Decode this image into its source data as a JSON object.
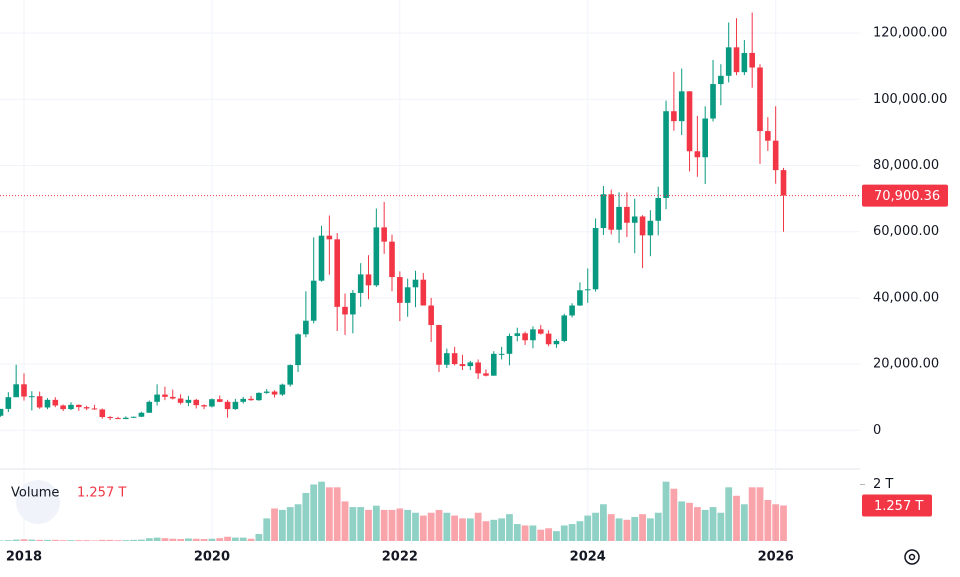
{
  "chart_data": {
    "type": "candlestick",
    "categories": [
      null,
      null,
      null,
      "2018",
      null,
      null,
      null,
      null,
      null,
      null,
      null,
      null,
      null,
      null,
      null,
      null,
      null,
      null,
      null,
      null,
      null,
      null,
      null,
      null,
      null,
      null,
      null,
      "2020",
      null,
      null,
      null,
      null,
      null,
      null,
      null,
      null,
      null,
      null,
      null,
      null,
      null,
      null,
      null,
      null,
      null,
      null,
      null,
      null,
      null,
      null,
      null,
      "2022",
      null,
      null,
      null,
      null,
      null,
      null,
      null,
      null,
      null,
      null,
      null,
      null,
      null,
      null,
      null,
      null,
      null,
      null,
      null,
      null,
      null,
      null,
      null,
      "2024",
      null,
      null,
      null,
      null,
      null,
      null,
      null,
      null,
      null,
      null,
      null,
      null,
      null,
      null,
      null,
      null,
      null,
      null,
      null,
      null,
      null,
      null,
      null,
      "2026",
      null
    ],
    "open": [
      4400,
      6470,
      10000,
      13900,
      10200,
      10300,
      6900,
      9200,
      7500,
      6400,
      7700,
      7000,
      6600,
      6300,
      4000,
      3700,
      3400,
      3800,
      4100,
      5300,
      8600,
      10800,
      10100,
      9600,
      8300,
      9200,
      7600,
      7200,
      9400,
      8600,
      6400,
      8600,
      9500,
      9100,
      11300,
      11700,
      10800,
      13800,
      19700,
      29000,
      33100,
      45200,
      58800,
      57700,
      37300,
      35000,
      41500,
      47100,
      43800,
      61300,
      57000,
      46300,
      38500,
      43200,
      45500,
      37700,
      31800,
      19800,
      23300,
      20000,
      19400,
      20500,
      17200,
      16500,
      23100,
      23100,
      28500,
      29300,
      27200,
      30500,
      29200,
      26000,
      27000,
      34700,
      37700,
      42300,
      42600,
      61100,
      71300,
      60600,
      67500,
      62700,
      64600,
      58900,
      63300,
      70200,
      96400,
      93400,
      102400,
      84300,
      82500,
      94200,
      104600,
      107100,
      115700,
      108200,
      114000,
      109600,
      90400,
      87500,
      78600
    ],
    "high": [
      6470,
      11500,
      19800,
      17200,
      11800,
      11700,
      9700,
      10000,
      7800,
      8500,
      7800,
      7400,
      7700,
      6600,
      4300,
      4100,
      4200,
      4100,
      5600,
      9000,
      13900,
      13200,
      12300,
      10900,
      10400,
      9500,
      7800,
      9600,
      10500,
      9200,
      9500,
      10100,
      10400,
      11500,
      12500,
      12100,
      14100,
      19900,
      29300,
      42000,
      58300,
      61800,
      64900,
      59600,
      41300,
      42400,
      50500,
      52900,
      67000,
      69000,
      59100,
      48000,
      45800,
      48200,
      47500,
      40000,
      31900,
      24700,
      25200,
      22800,
      21000,
      21400,
      18400,
      23900,
      25200,
      29200,
      31000,
      29800,
      31400,
      31800,
      30200,
      27500,
      35200,
      38400,
      44700,
      48900,
      64000,
      73800,
      72700,
      71900,
      71900,
      70000,
      65000,
      66500,
      73600,
      99600,
      108300,
      109300,
      102500,
      95000,
      97900,
      111900,
      110600,
      123200,
      124500,
      117900,
      126200,
      110600,
      94600,
      97900,
      79300
    ],
    "low": [
      4100,
      5500,
      10900,
      9000,
      6000,
      6500,
      6400,
      7000,
      5800,
      6100,
      5900,
      6100,
      6200,
      3500,
      3100,
      3400,
      3400,
      3700,
      4000,
      5300,
      7500,
      9100,
      9300,
      7800,
      7300,
      6600,
      6400,
      6900,
      8500,
      3800,
      6200,
      8100,
      8900,
      8900,
      11000,
      9900,
      10400,
      13200,
      17600,
      28100,
      32300,
      44900,
      47000,
      30000,
      28800,
      29300,
      37300,
      39600,
      43300,
      53300,
      42000,
      33000,
      34300,
      37200,
      37700,
      26700,
      17600,
      18800,
      19600,
      18200,
      18200,
      15500,
      16300,
      16500,
      21400,
      19600,
      26900,
      25800,
      24800,
      28900,
      25400,
      24900,
      26600,
      34100,
      37600,
      38500,
      41900,
      59000,
      59200,
      56600,
      58400,
      53500,
      49000,
      52600,
      58900,
      66800,
      90500,
      89200,
      78200,
      76600,
      74400,
      93300,
      98200,
      105100,
      107300,
      107300,
      103500,
      80500,
      84400,
      74500,
      60000
    ],
    "close": [
      6470,
      10000,
      13900,
      10200,
      10300,
      6900,
      9200,
      7500,
      6400,
      7700,
      7000,
      6600,
      6300,
      4000,
      3700,
      3400,
      3800,
      4100,
      5300,
      8600,
      10800,
      10100,
      9600,
      8300,
      9200,
      7600,
      7200,
      9400,
      8600,
      6400,
      8600,
      9500,
      9100,
      11300,
      11700,
      10800,
      13800,
      19700,
      29000,
      33100,
      45200,
      58800,
      57700,
      37300,
      35000,
      41500,
      47100,
      43800,
      61300,
      57000,
      46300,
      38500,
      43200,
      45500,
      37700,
      31800,
      19800,
      23300,
      20000,
      19400,
      20500,
      17200,
      16500,
      23100,
      23100,
      28500,
      29300,
      27200,
      30500,
      29200,
      26000,
      27000,
      34700,
      37700,
      42300,
      42600,
      61100,
      71300,
      60600,
      67500,
      62700,
      64600,
      58900,
      63300,
      70200,
      96400,
      93400,
      102400,
      84300,
      82500,
      94200,
      104600,
      107100,
      115700,
      108200,
      114000,
      109600,
      90400,
      87500,
      78600,
      70900.36
    ],
    "close_label": "70,900.36",
    "up_color": "#089981",
    "down_color": "#f23645",
    "ylim": [
      -20000,
      130000
    ],
    "yticks": [
      0,
      {
        "value": 20000,
        "label": "20,000.00"
      },
      {
        "value": 40000,
        "label": "40,000.00"
      },
      {
        "value": 60000,
        "label": "60,000.00"
      },
      {
        "value": 80000,
        "label": "80,000.00"
      },
      {
        "value": 100000,
        "label": "100,000.00"
      },
      {
        "value": 120000,
        "label": "120,000.00"
      }
    ],
    "volume": {
      "name": "Volume",
      "values": [
        0.02,
        0.03,
        0.05,
        0.06,
        0.05,
        0.04,
        0.04,
        0.04,
        0.03,
        0.03,
        0.03,
        0.03,
        0.02,
        0.04,
        0.04,
        0.03,
        0.03,
        0.04,
        0.05,
        0.1,
        0.12,
        0.1,
        0.08,
        0.07,
        0.09,
        0.08,
        0.07,
        0.08,
        0.1,
        0.15,
        0.12,
        0.12,
        0.08,
        0.25,
        0.8,
        1.15,
        1.1,
        1.2,
        1.3,
        1.7,
        2.0,
        2.1,
        1.9,
        1.9,
        1.4,
        1.2,
        1.2,
        1.1,
        1.25,
        1.1,
        1.1,
        1.15,
        1.1,
        1.0,
        0.9,
        1.0,
        1.1,
        1.0,
        0.9,
        0.8,
        0.8,
        1.0,
        0.7,
        0.75,
        0.8,
        0.95,
        0.6,
        0.55,
        0.55,
        0.4,
        0.45,
        0.35,
        0.55,
        0.6,
        0.7,
        0.9,
        1.0,
        1.3,
        0.95,
        0.8,
        0.75,
        0.85,
        0.95,
        0.8,
        1.0,
        2.1,
        1.85,
        1.4,
        1.35,
        1.2,
        1.1,
        1.2,
        1.0,
        1.9,
        1.6,
        1.3,
        1.9,
        1.9,
        1.45,
        1.3,
        1.257
      ],
      "last_label": "1.257 T",
      "ylim": [
        0,
        2.3
      ],
      "yticks": [
        {
          "value": 2,
          "label": "2 T"
        }
      ]
    }
  }
}
